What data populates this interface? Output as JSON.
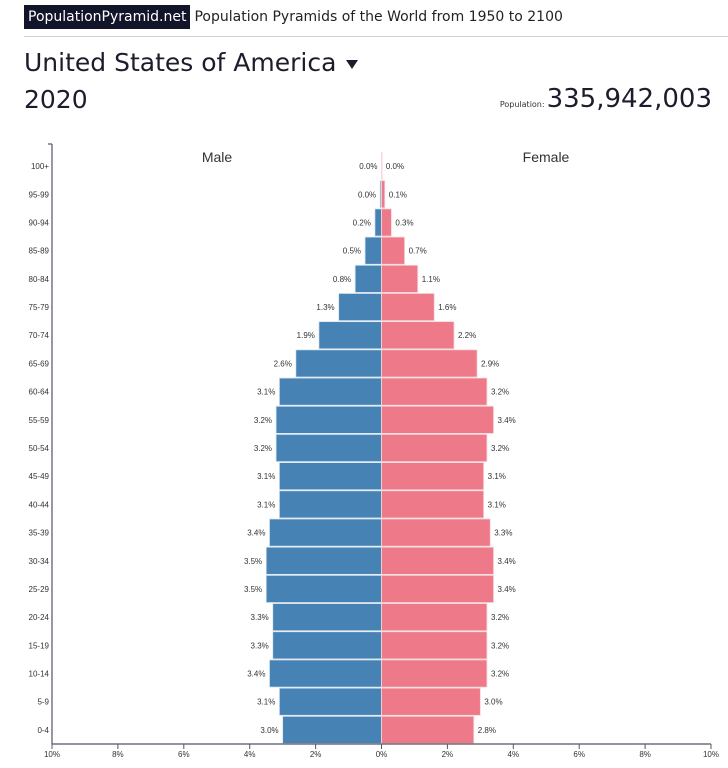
{
  "header": {
    "brand": "PopulationPyramid.net",
    "tagline": "Population Pyramids of the World from 1950 to 2100"
  },
  "country": {
    "name": "United States of America",
    "dropdown_icon": "caret-down-icon"
  },
  "year": "2020",
  "population": {
    "label": "Population:",
    "value": "335,942,003"
  },
  "colors": {
    "male": "#4682b4",
    "female": "#ee7989",
    "axis": "#555566"
  },
  "chart_data": {
    "type": "bar",
    "orientation": "horizontal-pyramid",
    "categories": [
      "100+",
      "95-99",
      "90-94",
      "85-89",
      "80-84",
      "75-79",
      "70-74",
      "65-69",
      "60-64",
      "55-59",
      "50-54",
      "45-49",
      "40-44",
      "35-39",
      "30-34",
      "25-29",
      "20-24",
      "15-19",
      "10-14",
      "5-9",
      "0-4"
    ],
    "series": [
      {
        "name": "Male",
        "values": [
          0.0,
          0.04,
          0.2,
          0.5,
          0.8,
          1.3,
          1.9,
          2.6,
          3.1,
          3.2,
          3.2,
          3.1,
          3.1,
          3.4,
          3.5,
          3.5,
          3.3,
          3.3,
          3.4,
          3.1,
          3.0
        ],
        "labels": [
          "0.0%",
          "0.0%",
          "0.2%",
          "0.5%",
          "0.8%",
          "1.3%",
          "1.9%",
          "2.6%",
          "3.1%",
          "3.2%",
          "3.2%",
          "3.1%",
          "3.1%",
          "3.4%",
          "3.5%",
          "3.5%",
          "3.3%",
          "3.3%",
          "3.4%",
          "3.1%",
          "3.0%"
        ]
      },
      {
        "name": "Female",
        "values": [
          0.01,
          0.1,
          0.3,
          0.7,
          1.1,
          1.6,
          2.2,
          2.9,
          3.2,
          3.4,
          3.2,
          3.1,
          3.1,
          3.3,
          3.4,
          3.4,
          3.2,
          3.2,
          3.2,
          3.0,
          2.8
        ],
        "labels": [
          "0.0%",
          "0.1%",
          "0.3%",
          "0.7%",
          "1.1%",
          "1.6%",
          "2.2%",
          "2.9%",
          "3.2%",
          "3.4%",
          "3.2%",
          "3.1%",
          "3.1%",
          "3.3%",
          "3.4%",
          "3.4%",
          "3.2%",
          "3.2%",
          "3.2%",
          "3.0%",
          "2.8%"
        ]
      }
    ],
    "xlim": [
      -10,
      10
    ],
    "xticks": [
      "10%",
      "8%",
      "6%",
      "4%",
      "2%",
      "0%",
      "2%",
      "4%",
      "6%",
      "8%",
      "10%"
    ],
    "xlabel": "",
    "ylabel": "",
    "grid": false,
    "legend": "series names above each half"
  }
}
